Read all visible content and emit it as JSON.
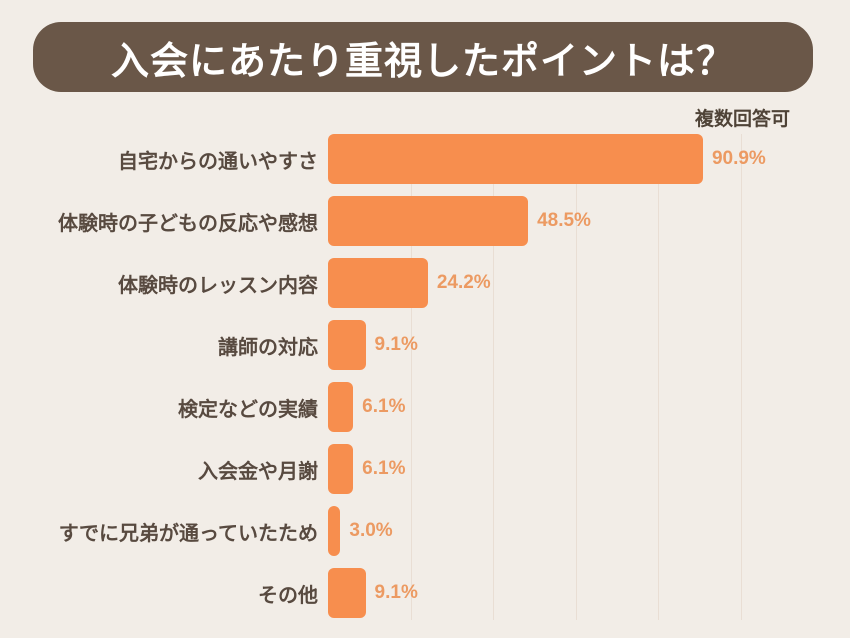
{
  "title": "入会にあたり重視したポイントは？",
  "note": "複数回答可",
  "colors": {
    "background": "#f2ede7",
    "title_bg": "#6a5748",
    "title_text": "#ffffff",
    "bar": "#f78e4e",
    "value_text": "#ec9a62",
    "label_text": "#584a40",
    "note_text": "#4f4337",
    "gridline": "#e9ded4"
  },
  "chart_data": {
    "type": "bar",
    "orientation": "horizontal",
    "title": "入会にあたり重視したポイントは？",
    "note": "複数回答可",
    "categories": [
      "自宅からの通いやすさ",
      "体験時の子どもの反応や感想",
      "体験時のレッスン内容",
      "講師の対応",
      "検定などの実績",
      "入会金や月謝",
      "すでに兄弟が通っていたため",
      "その他"
    ],
    "values": [
      90.9,
      48.5,
      24.2,
      9.1,
      6.1,
      6.1,
      3.0,
      9.1
    ],
    "value_labels": [
      "90.9%",
      "48.5%",
      "24.2%",
      "9.1%",
      "6.1%",
      "6.1%",
      "3.0%",
      "9.1%"
    ],
    "xlim": [
      0,
      100
    ],
    "gridlines_percent": [
      20,
      40,
      60,
      80,
      100
    ],
    "grid": true,
    "legend": false
  }
}
